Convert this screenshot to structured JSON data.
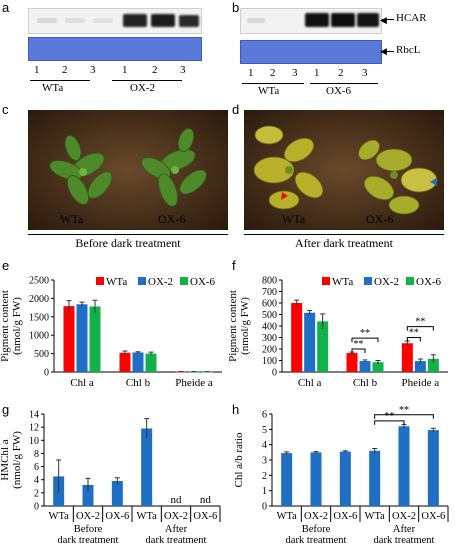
{
  "panels": {
    "a": {
      "letter": "a",
      "lanes": [
        "1",
        "2",
        "3",
        "1",
        "2",
        "3"
      ],
      "groups": [
        "WTa",
        "OX-2"
      ]
    },
    "b": {
      "letter": "b",
      "lanes": [
        "1",
        "2",
        "3",
        "1",
        "2",
        "3"
      ],
      "groups": [
        "WTa",
        "OX-6"
      ],
      "hcar_label": "HCAR",
      "rbcl_label": "RbcL"
    },
    "c": {
      "letter": "c",
      "left_label": "WTa",
      "right_label": "OX-6",
      "caption": "Before dark treatment"
    },
    "d": {
      "letter": "d",
      "left_label": "WTa",
      "right_label": "OX-6",
      "caption": "After dark treatment"
    },
    "e": {
      "letter": "e"
    },
    "f": {
      "letter": "f"
    },
    "g": {
      "letter": "g"
    },
    "h": {
      "letter": "h"
    }
  },
  "colors": {
    "wta": "#ff0000",
    "ox2": "#1f6fc4",
    "ox6": "#12b24a",
    "single": "#1f6fc4",
    "gel_blue": "#5b79d9"
  },
  "chart_data": [
    {
      "id": "e",
      "type": "bar",
      "categories": [
        "Chl a",
        "Chl b",
        "Pheide a"
      ],
      "series": [
        {
          "name": "WTa",
          "values": [
            1790,
            520,
            8
          ],
          "errors": [
            150,
            50,
            3
          ]
        },
        {
          "name": "OX-2",
          "values": [
            1840,
            530,
            8
          ],
          "errors": [
            60,
            20,
            3
          ]
        },
        {
          "name": "OX-6",
          "values": [
            1780,
            500,
            8
          ],
          "errors": [
            170,
            40,
            3
          ]
        }
      ],
      "ylabel": "Pigment content\n(nmol/g FW)",
      "ylim": [
        0,
        2500
      ],
      "yticks": [
        0,
        500,
        1000,
        1500,
        2000,
        2500
      ],
      "legend": "top-right"
    },
    {
      "id": "f",
      "type": "bar",
      "categories": [
        "Chl a",
        "Chl b",
        "Pheide a"
      ],
      "series": [
        {
          "name": "WTa",
          "values": [
            600,
            165,
            250
          ],
          "errors": [
            25,
            8,
            20
          ]
        },
        {
          "name": "OX-2",
          "values": [
            515,
            95,
            95
          ],
          "errors": [
            20,
            10,
            18
          ]
        },
        {
          "name": "OX-6",
          "values": [
            440,
            85,
            115
          ],
          "errors": [
            65,
            15,
            35
          ]
        }
      ],
      "ylabel": "Pigment content\n(nmol/g FW)",
      "ylim": [
        0,
        800
      ],
      "yticks": [
        0,
        100,
        200,
        300,
        400,
        500,
        600,
        700,
        800
      ],
      "legend": "top-right",
      "annotations": [
        "**",
        "**",
        "**",
        "**"
      ]
    },
    {
      "id": "g",
      "type": "bar",
      "categories": [
        "WTa",
        "OX-2",
        "OX-6",
        "WTa",
        "OX-2",
        "OX-6"
      ],
      "values": [
        4.5,
        3.2,
        3.8,
        11.8,
        0,
        0
      ],
      "errors": [
        2.5,
        1.0,
        0.5,
        1.5,
        0,
        0
      ],
      "ylabel": "HMChl a\n(nmol/g FW)",
      "ylim": [
        0,
        14
      ],
      "yticks": [
        0,
        2,
        4,
        6,
        8,
        10,
        12,
        14
      ],
      "group_labels": [
        "Before\ndark treatment",
        "After\ndark treatment"
      ],
      "annotations": [
        "nd",
        "nd"
      ]
    },
    {
      "id": "h",
      "type": "bar",
      "categories": [
        "WTa",
        "OX-2",
        "OX-6",
        "WTa",
        "OX-2",
        "OX-6"
      ],
      "values": [
        3.45,
        3.5,
        3.55,
        3.6,
        5.2,
        4.95
      ],
      "errors": [
        0.08,
        0.05,
        0.05,
        0.15,
        0.12,
        0.12
      ],
      "ylabel": "Chl a/b ratio",
      "ylim": [
        0,
        6
      ],
      "yticks": [
        0,
        1,
        2,
        3,
        4,
        5,
        6
      ],
      "group_labels": [
        "Before\ndark treatment",
        "After\ndark treatment"
      ],
      "annotations": [
        "**",
        "**"
      ]
    }
  ]
}
